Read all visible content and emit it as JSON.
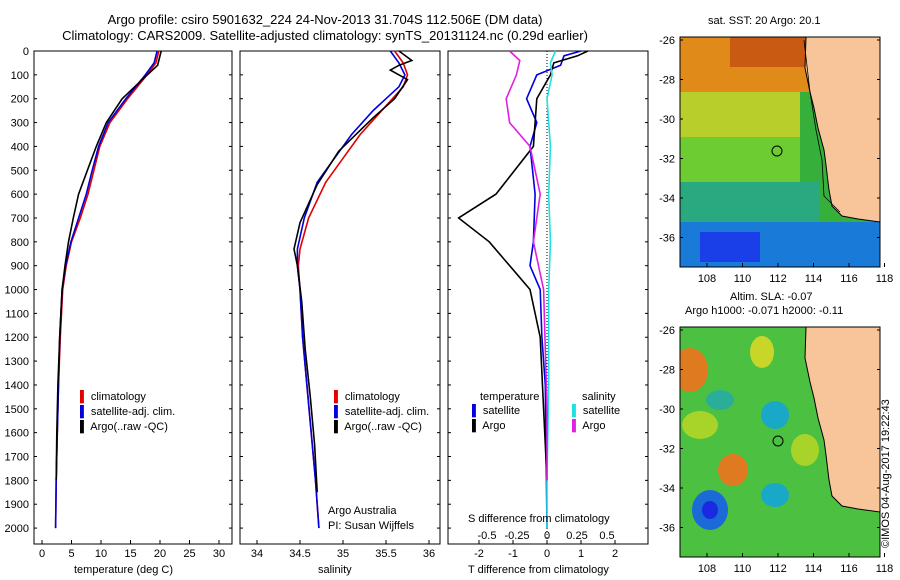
{
  "header": {
    "line1": "Argo profile: csiro 5901632_224 24-Nov-2013 31.704S 112.506E (DM data)",
    "line2": "Climatology: CARS2009. Satellite-adjusted climatology: synTS_20131124.nc (0.29d earlier)"
  },
  "colors": {
    "red": "#e00000",
    "blue": "#0000e0",
    "black": "#000000",
    "magenta": "#e020e0",
    "cyan": "#20e0e0",
    "land": "#f8c49a"
  },
  "depth_axis": {
    "ticks": [
      0,
      100,
      200,
      300,
      400,
      500,
      600,
      700,
      800,
      900,
      1000,
      1100,
      1200,
      1300,
      1400,
      1500,
      1600,
      1700,
      1800,
      1900,
      2000
    ]
  },
  "panel_temp": {
    "xlabel": "temperature (deg C)",
    "xticks": [
      "0",
      "5",
      "10",
      "15",
      "20",
      "25",
      "30"
    ],
    "legend": [
      "climatology",
      "satellite-adj. clim.",
      "Argo(..raw -QC)"
    ]
  },
  "panel_sal": {
    "xlabel": "salinity",
    "xticks": [
      "34",
      "34.5",
      "35",
      "35.5",
      "36"
    ],
    "legend": [
      "climatology",
      "satellite-adj. clim.",
      "Argo(..raw -QC)"
    ],
    "note1": "Argo Australia",
    "note2": "PI: Susan Wijffels"
  },
  "panel_diff": {
    "legend_temp_title": "temperature",
    "legend_sal_title": "salinity",
    "legend_sat": "satellite",
    "legend_argo": "Argo",
    "s_label": "S difference from climatology",
    "s_ticks": [
      "-0.5",
      "-0.25",
      "0",
      "0.25",
      "0.5"
    ],
    "t_ticks": [
      "-2",
      "-1",
      "0",
      "1",
      "2"
    ],
    "xlabel": "T difference from climatology"
  },
  "map_sst": {
    "title": "sat. SST: 20 Argo: 20.1",
    "yticks": [
      "-26",
      "-28",
      "-30",
      "-32",
      "-34",
      "-36"
    ],
    "xticks": [
      "108",
      "110",
      "112",
      "114",
      "116",
      "118"
    ]
  },
  "map_sla": {
    "title1": "Altim. SLA: -0.07",
    "title2": "Argo h1000: -0.071 h2000: -0.11",
    "yticks": [
      "-26",
      "-28",
      "-30",
      "-32",
      "-34",
      "-36"
    ],
    "xticks": [
      "108",
      "110",
      "112",
      "114",
      "116",
      "118"
    ]
  },
  "credit": "©IMOS 04-Aug-2017 19:22:43",
  "chart_data": [
    {
      "type": "line",
      "xlabel": "temperature (deg C)",
      "ylim": [
        2050,
        0
      ],
      "xlim": [
        -1,
        31
      ],
      "series": [
        {
          "name": "climatology",
          "x": [
            19.8,
            19.3,
            17.8,
            14.5,
            11.5,
            9.8,
            8.8,
            7.8,
            6.5,
            5.0,
            4.1,
            3.5,
            3.1,
            2.8,
            2.6,
            2.4,
            2.3
          ],
          "y": [
            0,
            50,
            100,
            200,
            300,
            400,
            500,
            600,
            700,
            800,
            900,
            1000,
            1200,
            1400,
            1600,
            1800,
            2000
          ]
        },
        {
          "name": "satellite-adj. clim.",
          "x": [
            19.5,
            19.0,
            17.5,
            14.2,
            11.2,
            9.6,
            8.5,
            7.5,
            6.2,
            4.9,
            4.0,
            3.4,
            3.0,
            2.8,
            2.6,
            2.4,
            2.3
          ],
          "y": [
            0,
            50,
            100,
            200,
            300,
            400,
            500,
            600,
            700,
            800,
            900,
            1000,
            1200,
            1400,
            1600,
            1800,
            2000
          ]
        },
        {
          "name": "Argo(..raw -QC)",
          "x": [
            20.2,
            19.6,
            17.0,
            13.6,
            10.9,
            9.2,
            7.7,
            6.2,
            5.3,
            4.5,
            3.9,
            3.4,
            3.0,
            2.7,
            2.5,
            2.4
          ],
          "y": [
            0,
            60,
            120,
            200,
            300,
            400,
            500,
            600,
            700,
            800,
            900,
            1000,
            1200,
            1400,
            1600,
            1800
          ]
        }
      ]
    },
    {
      "type": "line",
      "xlabel": "salinity",
      "ylim": [
        2050,
        0
      ],
      "xlim": [
        33.8,
        36.1
      ],
      "series": [
        {
          "name": "climatology",
          "x": [
            35.6,
            35.7,
            35.75,
            35.7,
            35.45,
            35.2,
            35.0,
            34.8,
            34.6,
            34.5,
            34.48,
            34.5,
            34.53,
            34.58,
            34.63,
            34.68,
            34.72
          ],
          "y": [
            0,
            50,
            100,
            150,
            250,
            350,
            450,
            550,
            700,
            830,
            900,
            1000,
            1200,
            1400,
            1600,
            1800,
            2000
          ]
        },
        {
          "name": "satellite-adj. clim.",
          "x": [
            35.55,
            35.65,
            35.72,
            35.65,
            35.35,
            35.1,
            34.9,
            34.7,
            34.55,
            34.47,
            34.47,
            34.5,
            34.53,
            34.58,
            34.63,
            34.68,
            34.72
          ],
          "y": [
            0,
            50,
            100,
            150,
            250,
            350,
            450,
            550,
            700,
            830,
            900,
            1000,
            1200,
            1400,
            1600,
            1800,
            2000
          ]
        },
        {
          "name": "Argo(..raw -QC)",
          "x": [
            35.65,
            35.8,
            35.65,
            35.55,
            35.75,
            35.6,
            35.35,
            34.95,
            34.7,
            34.5,
            34.43,
            34.47,
            34.52,
            34.56,
            34.62,
            34.67,
            34.7
          ],
          "y": [
            0,
            40,
            60,
            80,
            120,
            200,
            280,
            420,
            560,
            720,
            830,
            900,
            1050,
            1250,
            1450,
            1650,
            1850
          ]
        }
      ]
    },
    {
      "type": "line",
      "xlabel": "T difference from climatology",
      "ylim": [
        2050,
        0
      ],
      "xlim": [
        -2.9,
        3.0
      ],
      "series": [
        {
          "name": "temperature satellite",
          "x": [
            1.0,
            0.5,
            0.4,
            -0.3,
            -0.6,
            -0.3,
            -0.5,
            -0.35,
            -0.4,
            -0.5,
            -0.2,
            -0.15,
            -0.05,
            0
          ],
          "y": [
            0,
            20,
            60,
            100,
            200,
            300,
            400,
            600,
            800,
            900,
            1000,
            1200,
            1400,
            2000
          ]
        },
        {
          "name": "temperature Argo",
          "x": [
            1.2,
            0.9,
            0.2,
            0.1,
            -0.3,
            -0.4,
            -1.5,
            -2.6,
            -1.7,
            -0.5,
            -0.2,
            -0.1,
            0
          ],
          "y": [
            0,
            20,
            50,
            100,
            200,
            400,
            600,
            700,
            800,
            1000,
            1200,
            1500,
            1800
          ]
        },
        {
          "name": "salinity satellite",
          "x": [
            0.25,
            0.1,
            0.15,
            0.0,
            0.1,
            0.05,
            0.1,
            0.05,
            0.05,
            0.0,
            0.0
          ],
          "y": [
            0,
            50,
            100,
            200,
            400,
            600,
            800,
            1000,
            1400,
            1800,
            2000
          ]
        },
        {
          "name": "salinity Argo",
          "x": [
            -1.1,
            -0.8,
            -0.9,
            -1.2,
            -1.1,
            -0.5,
            -0.2,
            -0.4,
            -0.1,
            0,
            0
          ],
          "y": [
            0,
            40,
            100,
            200,
            300,
            400,
            600,
            800,
            1000,
            1500,
            1800
          ]
        }
      ]
    }
  ]
}
